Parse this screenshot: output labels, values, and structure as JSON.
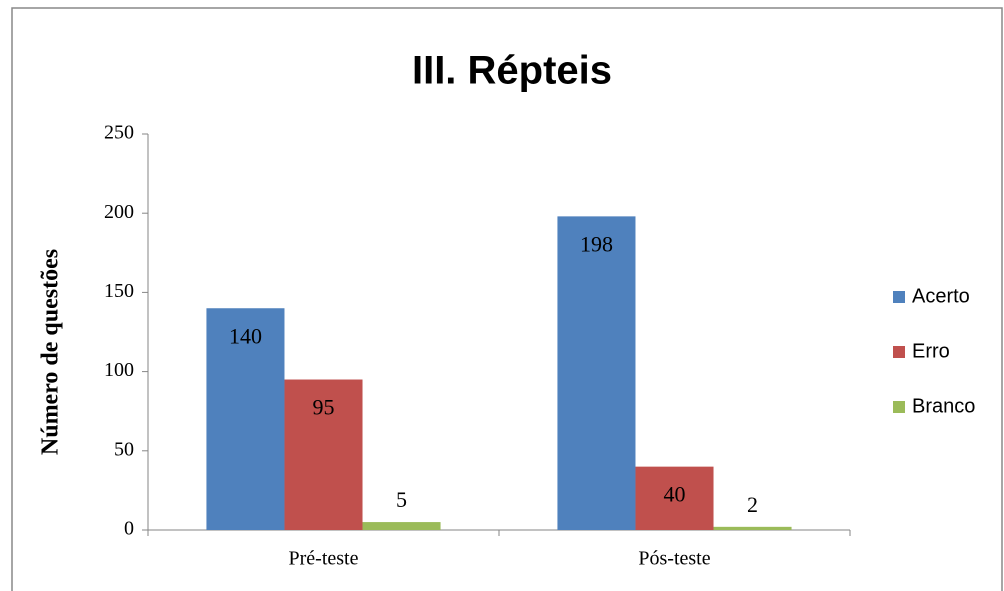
{
  "chart_data": {
    "type": "bar",
    "title": "III. Répteis",
    "ylabel": "Número de questões",
    "categories": [
      "Pré-teste",
      "Pós-teste"
    ],
    "series": [
      {
        "name": "Acerto",
        "color": "#4f81bd",
        "values": [
          140,
          198
        ]
      },
      {
        "name": "Erro",
        "color": "#c0504d",
        "values": [
          95,
          40
        ]
      },
      {
        "name": "Branco",
        "color": "#9bbb59",
        "values": [
          5,
          2
        ]
      }
    ],
    "ylim": [
      0,
      250
    ],
    "yticks": [
      0,
      50,
      100,
      150,
      200,
      250
    ],
    "legend": "right"
  }
}
